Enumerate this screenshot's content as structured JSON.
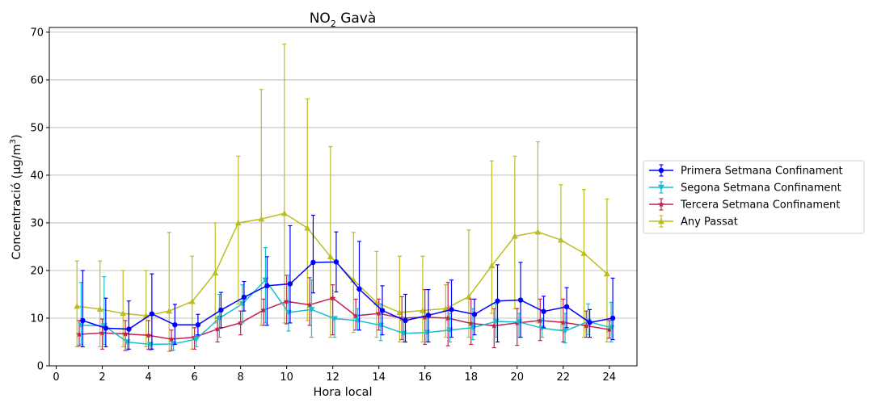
{
  "chart_data": {
    "type": "line",
    "title_main": "NO",
    "title_sub": "2",
    "title_rest": " Gavà",
    "xlabel": "Hora local",
    "ylabel_main": "Concentració (µg/m",
    "ylabel_sup": "3",
    "ylabel_end": ")",
    "xlim": [
      -0.3,
      25.2
    ],
    "ylim": [
      0,
      71
    ],
    "xticks": [
      0,
      2,
      4,
      6,
      8,
      10,
      12,
      14,
      16,
      18,
      20,
      22,
      24
    ],
    "xtick_labels": [
      "0",
      "2",
      "4",
      "6",
      "8",
      "10",
      "12",
      "14",
      "16",
      "18",
      "20",
      "22",
      "24"
    ],
    "yticks": [
      0,
      10,
      20,
      30,
      40,
      50,
      60,
      70
    ],
    "ytick_labels": [
      "0",
      "10",
      "20",
      "30",
      "40",
      "50",
      "60",
      "70"
    ],
    "grid": "y-major",
    "legend_position": "outside-right",
    "x": [
      1,
      2,
      3,
      4,
      5,
      6,
      7,
      8,
      9,
      10,
      11,
      12,
      13,
      14,
      15,
      16,
      17,
      18,
      19,
      20,
      21,
      22,
      23,
      24
    ],
    "series": [
      {
        "name": "Primera Setmana Confinament",
        "color": "#0000ff",
        "marker": "circle",
        "offset": 0.15,
        "values": [
          9.5,
          7.9,
          7.7,
          10.9,
          8.6,
          8.6,
          11.7,
          14.4,
          16.8,
          17.2,
          21.7,
          21.8,
          16.1,
          11.6,
          9.5,
          10.6,
          11.8,
          10.8,
          13.6,
          13.8,
          11.4,
          12.4,
          9.1,
          10.0
        ],
        "upper": [
          20.0,
          14.2,
          13.6,
          19.3,
          12.9,
          10.8,
          15.4,
          17.7,
          22.9,
          29.4,
          31.6,
          28.1,
          26.1,
          16.8,
          15.0,
          16.0,
          18.0,
          14.0,
          21.2,
          21.7,
          14.6,
          16.4,
          11.8,
          18.4
        ],
        "lower": [
          4.0,
          4.0,
          3.5,
          3.5,
          4.5,
          6.5,
          8.0,
          11.5,
          8.5,
          9.0,
          15.3,
          15.5,
          7.5,
          6.5,
          5.0,
          5.0,
          6.0,
          6.5,
          5.0,
          6.0,
          8.0,
          8.0,
          6.0,
          5.5
        ]
      },
      {
        "name": "Segona Setmana Confinament",
        "color": "#17becf",
        "marker": "triangle-down",
        "offset": 0.08,
        "values": [
          8.5,
          8.4,
          5.0,
          4.5,
          4.6,
          5.6,
          10.0,
          13.0,
          18.0,
          11.2,
          11.8,
          9.9,
          9.5,
          8.5,
          6.8,
          7.0,
          7.5,
          8.0,
          9.3,
          9.2,
          7.9,
          7.3,
          9.3,
          8.0
        ],
        "upper": [
          17.5,
          18.7,
          5.0,
          4.5,
          4.6,
          6.5,
          15.0,
          17.0,
          24.8,
          19.0,
          18.0,
          10.0,
          12.0,
          13.0,
          10.0,
          11.0,
          11.0,
          12.0,
          13.0,
          11.0,
          10.0,
          11.0,
          13.0,
          13.3
        ],
        "lower": [
          4.5,
          4.5,
          3.3,
          3.3,
          3.3,
          4.0,
          6.0,
          9.0,
          9.0,
          7.3,
          6.0,
          6.0,
          7.5,
          5.3,
          5.0,
          5.0,
          5.0,
          5.5,
          6.0,
          6.0,
          6.0,
          4.8,
          6.5,
          5.0
        ]
      },
      {
        "name": "Tercera Setmana Confinament",
        "color": "#c0234e",
        "marker": "star",
        "offset": 0.0,
        "values": [
          6.6,
          6.9,
          6.7,
          6.4,
          5.6,
          6.0,
          7.7,
          9.0,
          11.7,
          13.5,
          12.8,
          14.2,
          10.5,
          11.0,
          10.0,
          10.2,
          10.0,
          8.9,
          8.4,
          9.0,
          9.5,
          9.1,
          8.4,
          7.6
        ],
        "upper": [
          9.5,
          9.8,
          9.5,
          9.5,
          7.5,
          8.0,
          10.0,
          11.5,
          14.0,
          19.0,
          18.5,
          17.0,
          14.0,
          14.0,
          14.5,
          16.0,
          17.5,
          14.0,
          12.0,
          12.0,
          14.0,
          14.0,
          11.5,
          9.5
        ],
        "lower": [
          4.2,
          3.5,
          3.2,
          3.5,
          3.2,
          3.5,
          5.0,
          6.5,
          8.5,
          8.8,
          8.5,
          6.5,
          7.5,
          7.5,
          5.5,
          4.5,
          4.2,
          4.5,
          3.8,
          4.3,
          5.3,
          5.0,
          6.0,
          5.8
        ]
      },
      {
        "name": "Any Passat",
        "color": "#bcbd22",
        "marker": "triangle-up",
        "offset": -0.1,
        "values": [
          12.5,
          11.9,
          11.0,
          10.5,
          11.5,
          13.5,
          19.5,
          30.0,
          30.8,
          32.0,
          28.9,
          22.9,
          18.0,
          13.3,
          11.2,
          11.6,
          12.0,
          14.5,
          21.0,
          27.2,
          28.1,
          26.4,
          23.6,
          19.3
        ],
        "upper": [
          22.0,
          22.0,
          20.0,
          20.0,
          28.0,
          23.0,
          30.0,
          44.0,
          58.0,
          67.5,
          56.0,
          46.0,
          28.0,
          24.0,
          23.0,
          23.0,
          17.0,
          28.5,
          43.0,
          44.0,
          47.0,
          38.0,
          37.0,
          35.0
        ],
        "lower": [
          4.0,
          4.0,
          4.0,
          4.0,
          3.0,
          3.5,
          9.0,
          13.0,
          8.5,
          9.0,
          9.5,
          6.0,
          7.0,
          6.0,
          5.0,
          5.0,
          6.0,
          6.0,
          11.0,
          12.0,
          9.0,
          7.5,
          6.0,
          5.0
        ]
      }
    ]
  }
}
